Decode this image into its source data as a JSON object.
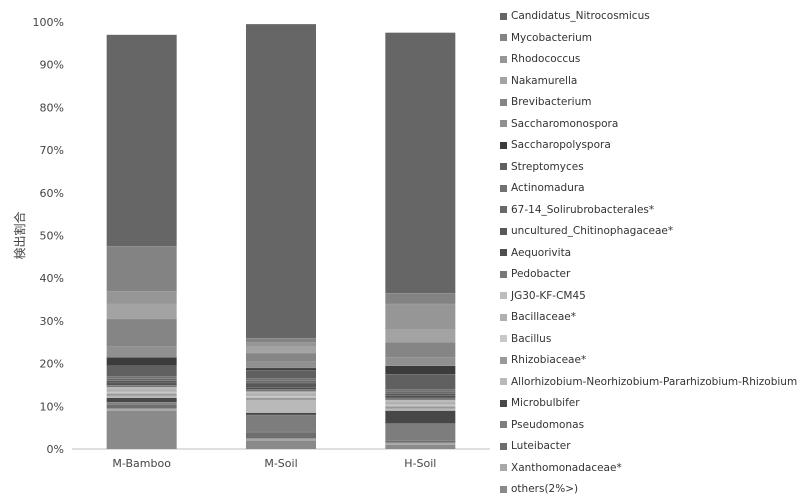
{
  "chart_data": {
    "type": "bar",
    "stacked": true,
    "title": "",
    "xlabel": "",
    "ylabel": "検出割合",
    "ylim": [
      0,
      100
    ],
    "ytick_labels": [
      "0%",
      "10%",
      "20%",
      "30%",
      "40%",
      "50%",
      "60%",
      "70%",
      "80%",
      "90%",
      "100%"
    ],
    "categories": [
      "M-Bamboo",
      "M-Soil",
      "H-Soil"
    ],
    "legend_position": "right",
    "series": [
      {
        "name": "others(2%>)",
        "color": "#8a8a8a",
        "values": [
          9.0,
          2.0,
          1.0
        ]
      },
      {
        "name": "Xanthomonadaceae*",
        "color": "#a8a8a8",
        "values": [
          0.5,
          0.5,
          0.5
        ]
      },
      {
        "name": "Luteibacter",
        "color": "#6e6e6e",
        "values": [
          1.0,
          1.5,
          0.5
        ]
      },
      {
        "name": "Pseudomonas",
        "color": "#7d7d7d",
        "values": [
          0.5,
          4.0,
          4.0
        ]
      },
      {
        "name": "Microbulbifer",
        "color": "#474747",
        "values": [
          1.0,
          0.5,
          3.0
        ]
      },
      {
        "name": "Allorhizobium-Neorhizobium-Pararhizobium-Rhizobium",
        "color": "#b9b9b9",
        "values": [
          0.5,
          3.0,
          0.5
        ]
      },
      {
        "name": "Rhizobiaceae*",
        "color": "#9a9a9a",
        "values": [
          0.5,
          0.5,
          0.5
        ]
      },
      {
        "name": "Bacillus",
        "color": "#c8c8c8",
        "values": [
          0.5,
          0.5,
          0.5
        ]
      },
      {
        "name": "Bacillaceae*",
        "color": "#b0b0b0",
        "values": [
          0.5,
          0.5,
          0.5
        ]
      },
      {
        "name": "JG30-KF-CM45",
        "color": "#bdbdbd",
        "values": [
          0.5,
          0.5,
          0.5
        ]
      },
      {
        "name": "Pedobacter",
        "color": "#787878",
        "values": [
          0.5,
          0.5,
          0.5
        ]
      },
      {
        "name": "Aequorivita",
        "color": "#4e4e4e",
        "values": [
          0.5,
          0.5,
          0.5
        ]
      },
      {
        "name": "uncultured_Chitinophagaceae*",
        "color": "#585858",
        "values": [
          0.5,
          1.0,
          0.5
        ]
      },
      {
        "name": "67-14_Solirubrobacterales*",
        "color": "#6a6a6a",
        "values": [
          0.5,
          0.5,
          0.5
        ]
      },
      {
        "name": "Actinomadura",
        "color": "#727272",
        "values": [
          0.5,
          0.5,
          0.5
        ]
      },
      {
        "name": "Streptomyces",
        "color": "#606060",
        "values": [
          2.5,
          2.0,
          3.5
        ]
      },
      {
        "name": "Saccharopolyspora",
        "color": "#3c3c3c",
        "values": [
          2.0,
          0.5,
          2.0
        ]
      },
      {
        "name": "Saccharomonospora",
        "color": "#909090",
        "values": [
          2.5,
          1.5,
          2.0
        ]
      },
      {
        "name": "Brevibacterium",
        "color": "#858585",
        "values": [
          6.5,
          2.0,
          3.5
        ]
      },
      {
        "name": "Nakamurella",
        "color": "#a3a3a3",
        "values": [
          3.5,
          1.5,
          3.0
        ]
      },
      {
        "name": "Rhodococcus",
        "color": "#969696",
        "values": [
          3.0,
          1.0,
          6.0
        ]
      },
      {
        "name": "Mycobacterium",
        "color": "#838383",
        "values": [
          10.5,
          1.0,
          2.5
        ]
      },
      {
        "name": "Candidatus_Nitrocosmicus",
        "color": "#666666",
        "values": [
          49.5,
          73.5,
          61.0
        ]
      }
    ]
  }
}
